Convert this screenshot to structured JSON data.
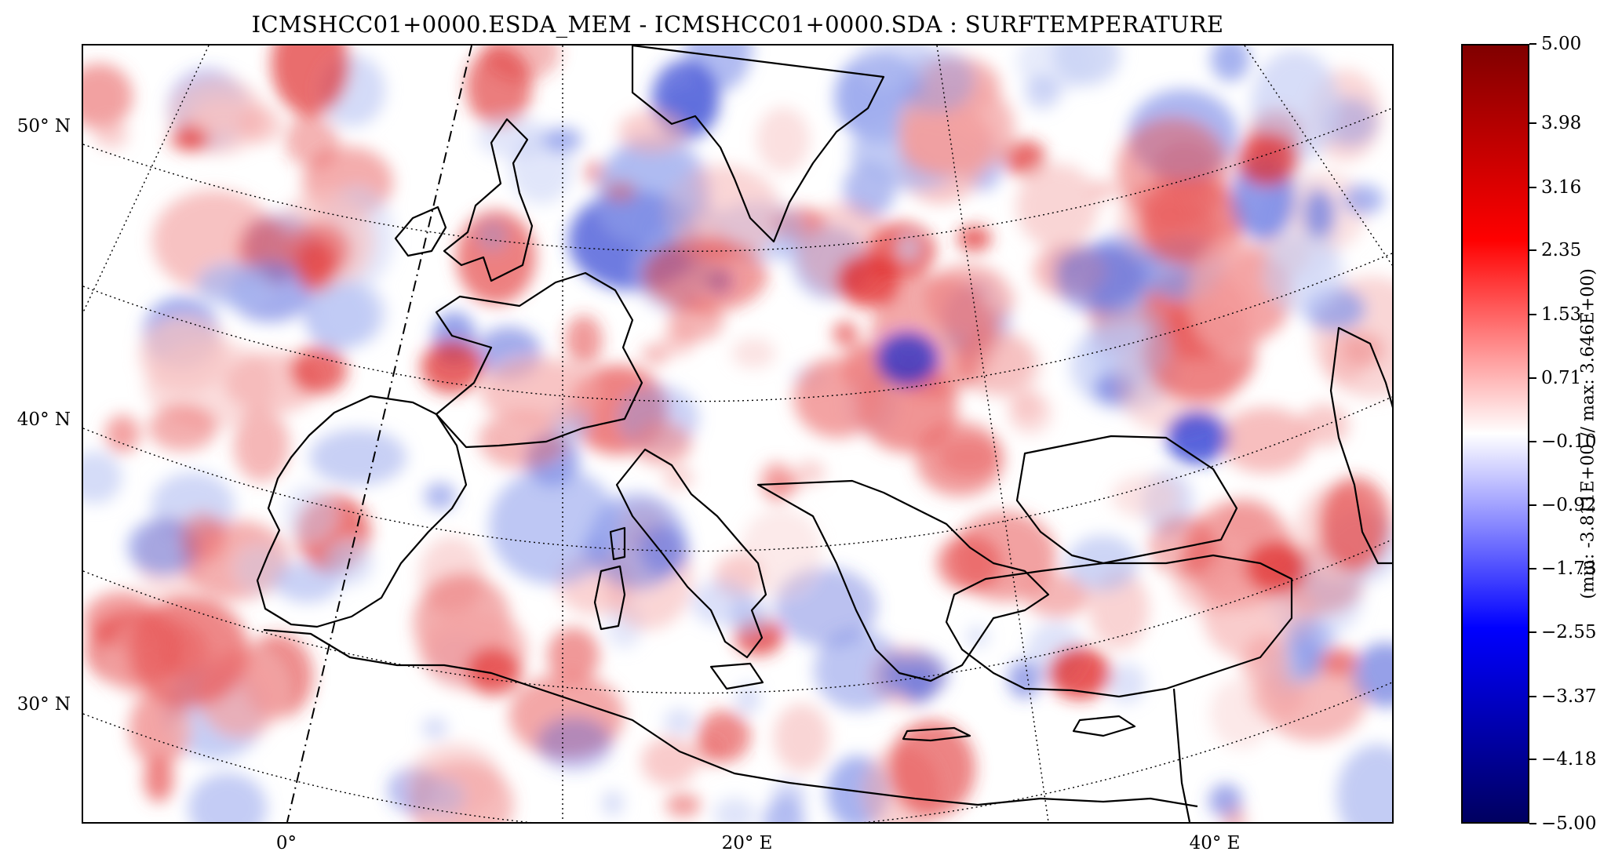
{
  "title": "ICMSHCC01+0000.ESDA_MEM - ICMSHCC01+0000.SDA : SURFTEMPERATURE",
  "map": {
    "variable": "SURFTEMPERATURE",
    "region": "Europe, Mediterranean and North Africa",
    "projection": "Lambert conformal",
    "latitude_labels": [
      "50° N",
      "40° N",
      "30° N"
    ],
    "longitude_labels": [
      "0°",
      "20° E",
      "40° E"
    ],
    "latitude_values": [
      50,
      40,
      30
    ],
    "longitude_values": [
      0,
      20,
      40
    ],
    "graticule_style": "dotted"
  },
  "colorbar": {
    "colormap": "seismic (blue-white-red)",
    "min": -5.0,
    "max": 5.0,
    "tick_labels": [
      "5.00",
      "3.98",
      "3.16",
      "2.35",
      "1.53",
      "0.71",
      "−0.10",
      "−0.92",
      "−1.73",
      "−2.55",
      "−3.37",
      "−4.18",
      "−5.00"
    ],
    "tick_values": [
      5.0,
      3.98,
      3.16,
      2.35,
      1.53,
      0.71,
      -0.1,
      -0.92,
      -1.73,
      -2.55,
      -3.37,
      -4.18,
      -5.0
    ],
    "stats_label": "(min: -3.811E+00 // max:  3.646E+00)",
    "colors": {
      "max": "#800000",
      "high": "#ff0000",
      "mid": "#ffffff",
      "low": "#0000ff",
      "min": "#000060"
    }
  }
}
